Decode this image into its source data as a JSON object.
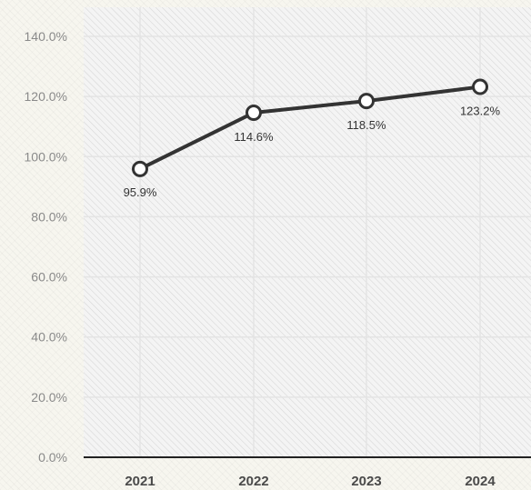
{
  "chart_data": {
    "type": "line",
    "categories": [
      "2021",
      "2022",
      "2023",
      "2024"
    ],
    "series": [
      {
        "values": [
          95.9,
          114.6,
          118.5,
          123.2
        ]
      }
    ],
    "data_labels": [
      "95.9%",
      "114.6%",
      "118.5%",
      "123.2%"
    ],
    "y_ticks": [
      0,
      20,
      40,
      60,
      80,
      100,
      120,
      140
    ],
    "y_tick_labels": [
      "0.0%",
      "20.0%",
      "40.0%",
      "60.0%",
      "80.0%",
      "100.0%",
      "120.0%",
      "140.0%"
    ],
    "ylim": [
      0,
      140
    ],
    "grid": true,
    "title": "",
    "xlabel": "",
    "ylabel": ""
  },
  "colors": {
    "line": "#333333",
    "marker_fill": "#ffffff",
    "grid": "#e4e4e4",
    "axis": "#222222"
  }
}
